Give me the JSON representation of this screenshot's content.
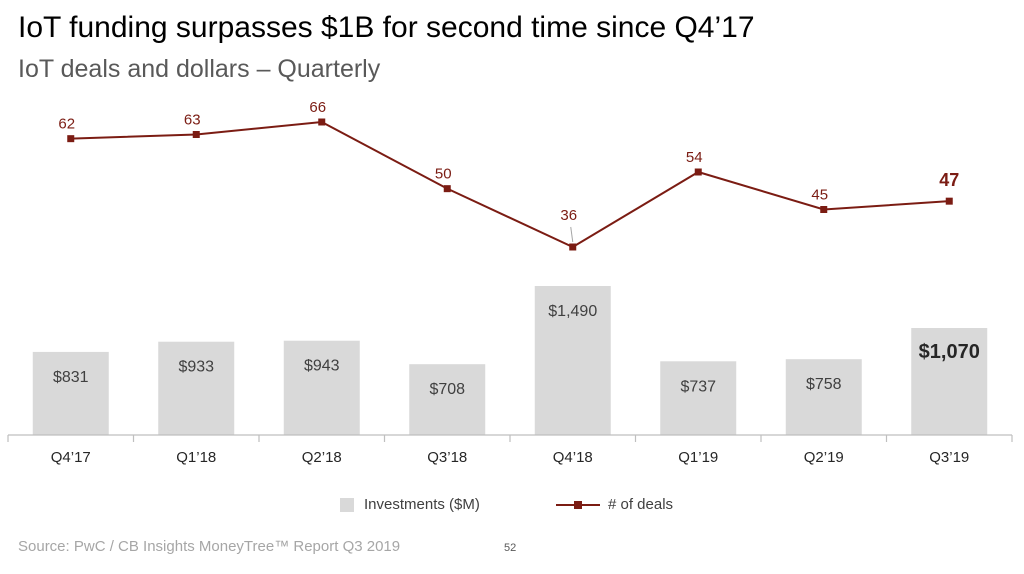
{
  "slide": {
    "title": "IoT funding surpasses $1B for second time since Q4’17",
    "subtitle": "IoT deals and dollars – Quarterly",
    "source": "Source: PwC / CB Insights MoneyTree™ Report Q3 2019",
    "page_number": "52"
  },
  "legend": {
    "bar_label": "Investments ($M)",
    "line_label": "# of deals"
  },
  "colors": {
    "bar": "#d9d9d9",
    "line": "#7b1c13",
    "bar_label": "#404040",
    "axis": "#bfbfbf",
    "tick_label": "#262626"
  },
  "chart_data": {
    "type": "bar",
    "categories": [
      "Q4’17",
      "Q1’18",
      "Q2’18",
      "Q3’18",
      "Q4’18",
      "Q1’19",
      "Q2’19",
      "Q3’19"
    ],
    "series": [
      {
        "name": "Investments ($M)",
        "type": "bar",
        "values": [
          831,
          933,
          943,
          708,
          1490,
          737,
          758,
          1070
        ],
        "labels": [
          "$831",
          "$933",
          "$943",
          "$708",
          "$1,490",
          "$737",
          "$758",
          "$1,070"
        ]
      },
      {
        "name": "# of deals",
        "type": "line",
        "values": [
          62,
          63,
          66,
          50,
          36,
          54,
          45,
          47
        ],
        "labels": [
          "62",
          "63",
          "66",
          "50",
          "36",
          "54",
          "45",
          "47"
        ]
      }
    ],
    "highlighted_category": "Q3’19",
    "legend_position": "bottom"
  }
}
